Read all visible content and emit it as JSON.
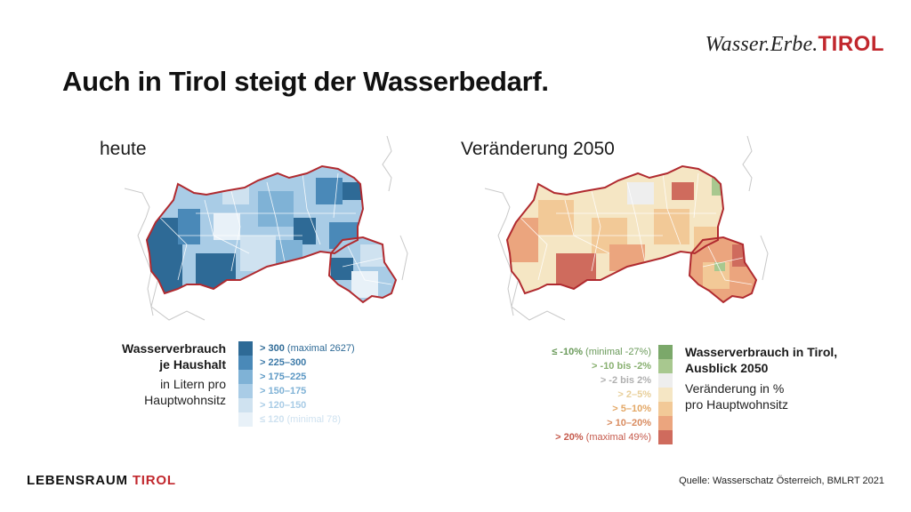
{
  "brand": {
    "name": "Wasser.Erbe.",
    "accent": "TIROL"
  },
  "title": "Auch in Tirol steigt der Wasserbedarf.",
  "maps": {
    "left_label": "heute",
    "right_label": "Veränderung 2050"
  },
  "legend_left": {
    "title_lines": [
      "Wasserverbrauch",
      "je Haushalt"
    ],
    "note_lines": [
      "in Litern pro",
      "Hauptwohnsitz"
    ],
    "items": [
      {
        "label": "> 300",
        "extra": "(maximal 2627)",
        "color": "#2e6a96"
      },
      {
        "label": "> 225–300",
        "extra": "",
        "color": "#4a89b8"
      },
      {
        "label": "> 175–225",
        "extra": "",
        "color": "#7fb2d6"
      },
      {
        "label": "> 150–175",
        "extra": "",
        "color": "#a9cce6"
      },
      {
        "label": "> 120–150",
        "extra": "",
        "color": "#cfe2f0"
      },
      {
        "label": "≤ 120",
        "extra": "(minimal 78)",
        "color": "#e8f1f8"
      }
    ]
  },
  "legend_right": {
    "title_lines": [
      "Wasserverbrauch in Tirol,",
      "Ausblick 2050"
    ],
    "note_lines": [
      "Veränderung in %",
      "pro Hauptwohnsitz"
    ],
    "items": [
      {
        "label": "≤ -10%",
        "extra": "(minimal -27%)",
        "color": "#7ba86a",
        "text_color": "#6a9a5a"
      },
      {
        "label": "> -10 bis -2%",
        "extra": "",
        "color": "#a8c88f",
        "text_color": "#88b070"
      },
      {
        "label": "> -2 bis 2%",
        "extra": "",
        "color": "#eeeeee",
        "text_color": "#b0b0b0"
      },
      {
        "label": "> 2–5%",
        "extra": "",
        "color": "#f5e6c4",
        "text_color": "#e8cf9a"
      },
      {
        "label": "> 5–10%",
        "extra": "",
        "color": "#f2c997",
        "text_color": "#e3a765"
      },
      {
        "label": "> 10–20%",
        "extra": "",
        "color": "#eba57e",
        "text_color": "#d98b5f"
      },
      {
        "label": "> 20%",
        "extra": "(maximal 49%)",
        "color": "#cf6b5d",
        "text_color": "#c55a4c"
      }
    ]
  },
  "footer": {
    "brand_main": "LEBENSRAUM",
    "brand_accent": "TIROL",
    "source": "Quelle: Wasserschatz Österreich, BMLRT 2021"
  }
}
